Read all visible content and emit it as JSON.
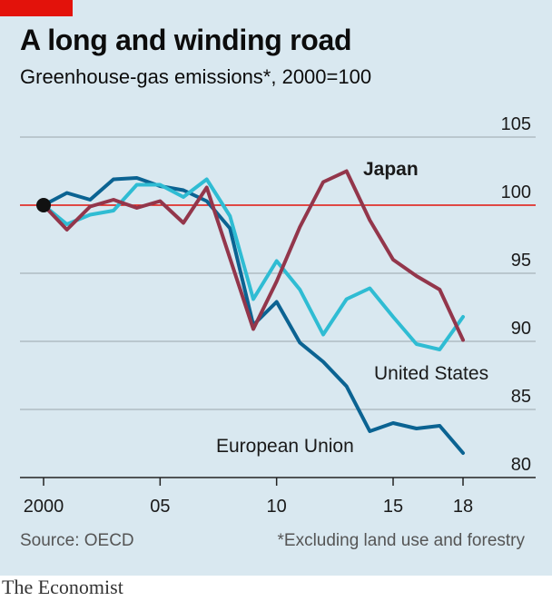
{
  "header": {
    "title": "A long and winding road",
    "subtitle": "Greenhouse-gas emissions*, 2000=100"
  },
  "footer": {
    "source": "Source: OECD",
    "footnote": "*Excluding land use and forestry",
    "brand": "The Economist"
  },
  "colors": {
    "background": "#d9e8f0",
    "accent_red": "#e3120b",
    "eu": "#0b6392",
    "us": "#2fbcd3",
    "japan": "#93364b",
    "gridline": "#9aa6ad",
    "baseline": "#e3120b"
  },
  "chart_data": {
    "type": "line",
    "x": [
      2000,
      2001,
      2002,
      2003,
      2004,
      2005,
      2006,
      2007,
      2008,
      2009,
      2010,
      2011,
      2012,
      2013,
      2014,
      2015,
      2016,
      2017,
      2018
    ],
    "x_tick_values": [
      2000,
      2005,
      2010,
      2015,
      2018
    ],
    "x_tick_labels": [
      "2000",
      "05",
      "10",
      "15",
      "18"
    ],
    "y_ticks": [
      80,
      85,
      90,
      95,
      100,
      105
    ],
    "ylim": [
      80,
      105
    ],
    "xlim": [
      2000,
      2018
    ],
    "baseline": 100,
    "grid": true,
    "series": [
      {
        "name": "European Union",
        "color_key": "eu",
        "values": [
          100,
          100.9,
          100.4,
          101.9,
          102,
          101.4,
          101.1,
          100.3,
          98.3,
          91.2,
          92.9,
          89.9,
          88.5,
          86.7,
          83.4,
          84,
          83.6,
          83.8,
          81.8
        ]
      },
      {
        "name": "United States",
        "color_key": "us",
        "values": [
          100,
          98.6,
          99.3,
          99.6,
          101.5,
          101.5,
          100.6,
          101.9,
          99.2,
          93.1,
          95.9,
          93.8,
          90.5,
          93.1,
          93.9,
          91.8,
          89.8,
          89.4,
          91.8
        ]
      },
      {
        "name": "Japan",
        "color_key": "japan",
        "values": [
          100,
          98.2,
          99.9,
          100.4,
          99.8,
          100.3,
          98.7,
          101.3,
          96.1,
          90.9,
          94.4,
          98.4,
          101.7,
          102.5,
          98.9,
          96,
          94.8,
          93.8,
          90.1
        ]
      }
    ]
  }
}
